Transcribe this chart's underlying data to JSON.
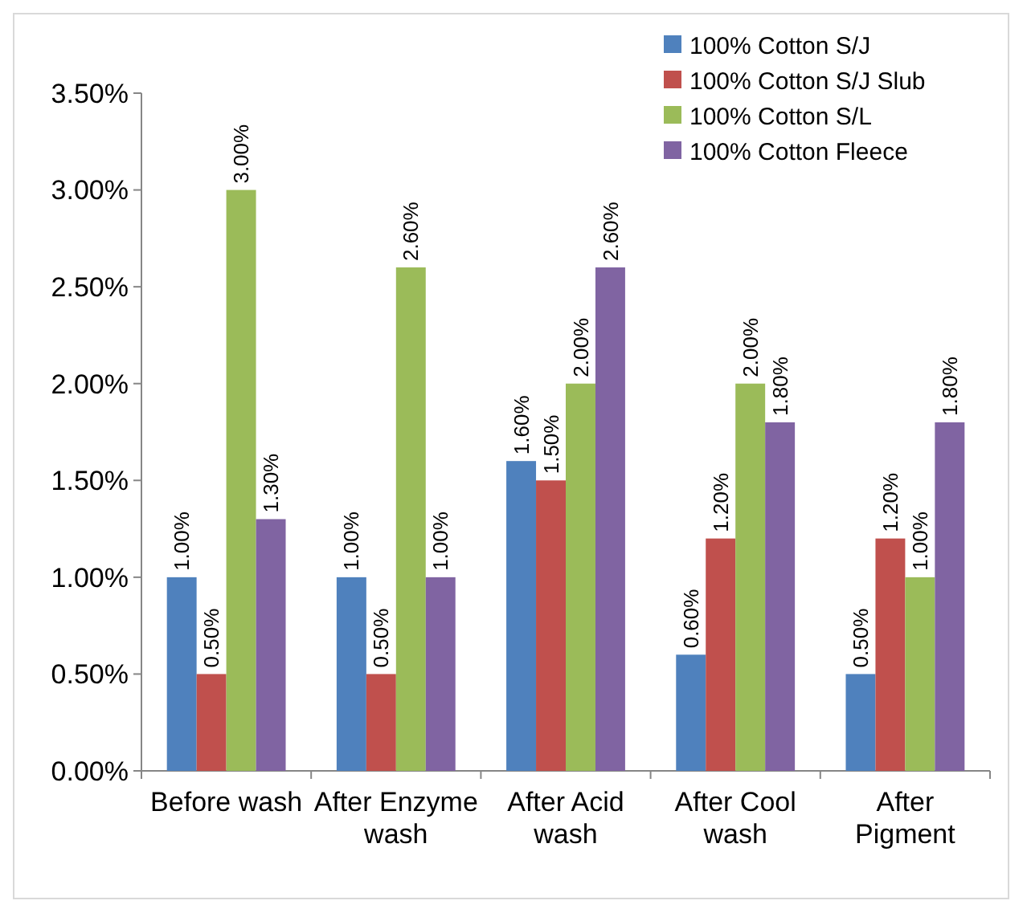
{
  "chart_data": {
    "type": "bar",
    "categories": [
      "Before wash",
      "After Enzyme wash",
      "After Acid wash",
      "After Cool wash",
      "After Pigment"
    ],
    "series": [
      {
        "name": "100% Cotton S/J",
        "color": "#4f81bd",
        "values": [
          1.0,
          1.0,
          1.6,
          0.6,
          0.5
        ],
        "value_labels": [
          "1.00%",
          "1.00%",
          "1.60%",
          "0.60%",
          "0.50%"
        ]
      },
      {
        "name": "100% Cotton S/J Slub",
        "color": "#c0504d",
        "values": [
          0.5,
          0.5,
          1.5,
          1.2,
          1.2
        ],
        "value_labels": [
          "0.50%",
          "0.50%",
          "1.50%",
          "1.20%",
          "1.20%"
        ]
      },
      {
        "name": "100% Cotton S/L",
        "color": "#9bbb59",
        "values": [
          3.0,
          2.6,
          2.0,
          2.0,
          1.0
        ],
        "value_labels": [
          "3.00%",
          "2.60%",
          "2.00%",
          "2.00%",
          "1.00%"
        ]
      },
      {
        "name": "100% Cotton Fleece",
        "color": "#8064a2",
        "values": [
          1.3,
          1.0,
          2.6,
          1.8,
          1.8
        ],
        "value_labels": [
          "1.30%",
          "1.00%",
          "2.60%",
          "1.80%",
          "1.80%"
        ]
      }
    ],
    "ylim": [
      0,
      3.5
    ],
    "yticks": [
      {
        "value": 0,
        "label": "0.00%"
      },
      {
        "value": 0.5,
        "label": "0.50%"
      },
      {
        "value": 1,
        "label": "1.00%"
      },
      {
        "value": 1.5,
        "label": "1.50%"
      },
      {
        "value": 2,
        "label": "2.00%"
      },
      {
        "value": 2.5,
        "label": "2.50%"
      },
      {
        "value": 3,
        "label": "3.00%"
      },
      {
        "value": 3.5,
        "label": "3.50%"
      }
    ],
    "grid": false,
    "legend": "top right"
  }
}
